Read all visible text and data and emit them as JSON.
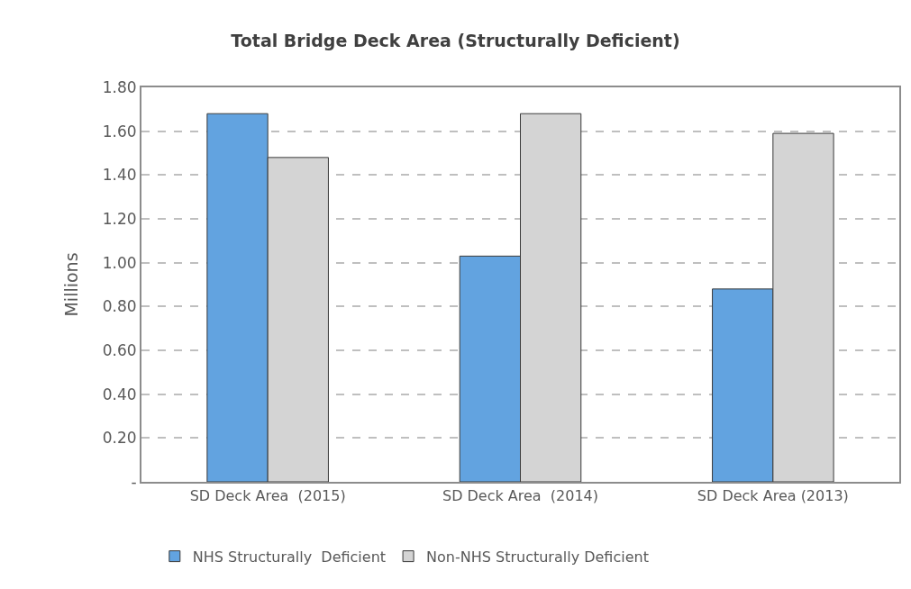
{
  "chart_data": {
    "type": "bar",
    "title": "Total Bridge Deck Area (Structurally Deficient)",
    "ylabel": "Millions",
    "categories": [
      "SD Deck Area  (2015)",
      "SD Deck Area  (2014)",
      "SD Deck Area (2013)"
    ],
    "series": [
      {
        "name": "NHS Structurally  Deficient",
        "color": "#62a3e0",
        "values": [
          1.68,
          1.03,
          0.88
        ]
      },
      {
        "name": "Non-NHS Structurally Deficient",
        "color": "#d4d4d4",
        "values": [
          1.48,
          1.68,
          1.59
        ]
      }
    ],
    "ylim": [
      0,
      1.8
    ],
    "yticks": [
      {
        "value": 0,
        "label": "-"
      },
      {
        "value": 0.2,
        "label": "0.20"
      },
      {
        "value": 0.4,
        "label": "0.40"
      },
      {
        "value": 0.6,
        "label": "0.60"
      },
      {
        "value": 0.8,
        "label": "0.80"
      },
      {
        "value": 1.0,
        "label": "1.00"
      },
      {
        "value": 1.2,
        "label": "1.20"
      },
      {
        "value": 1.4,
        "label": "1.40"
      },
      {
        "value": 1.6,
        "label": "1.60"
      },
      {
        "value": 1.8,
        "label": "1.80"
      }
    ],
    "grid": "y",
    "legend": "bottom"
  }
}
